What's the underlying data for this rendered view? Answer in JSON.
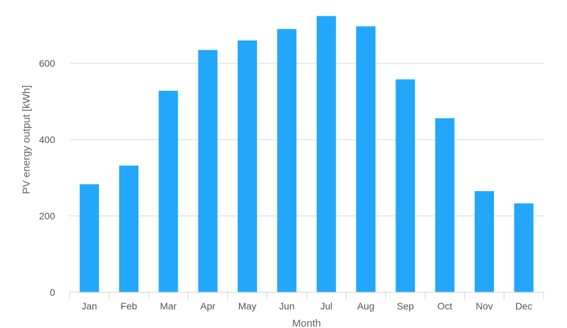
{
  "chart_data": {
    "type": "bar",
    "title": "",
    "xlabel": "Month",
    "ylabel": "PV energy output [kWh]",
    "categories": [
      "Jan",
      "Feb",
      "Mar",
      "Apr",
      "May",
      "Jun",
      "Jul",
      "Aug",
      "Sep",
      "Oct",
      "Nov",
      "Dec"
    ],
    "series": [
      {
        "values": [
          283,
          332,
          528,
          635,
          660,
          690,
          724,
          697,
          558,
          456,
          265,
          233
        ]
      }
    ],
    "yticks": [
      0,
      200,
      400,
      600
    ],
    "ytick_labels": [
      "0",
      "200",
      "400",
      "600"
    ],
    "ylim": [
      0,
      730
    ],
    "grid": "horizontal",
    "legend": "none",
    "colors": {
      "bar": "#22a7fb",
      "grid": "#d9d9d9",
      "axis": "#c8d4e0",
      "tick_text": "#555555",
      "axis_title": "#666666"
    }
  }
}
